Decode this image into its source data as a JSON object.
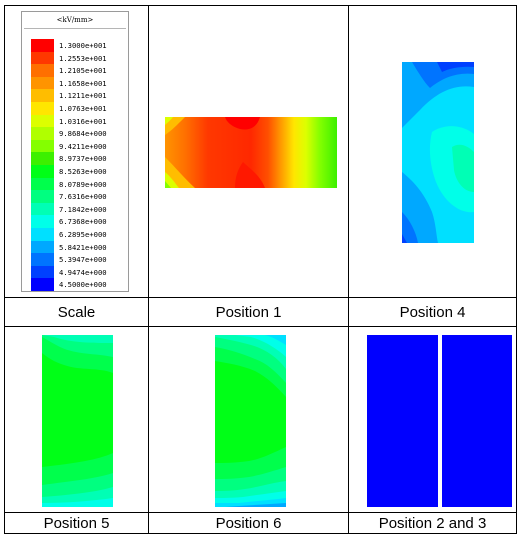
{
  "legend": {
    "unit": "<kV/mm>",
    "levels": [
      {
        "value": "1.3000e+001",
        "color": "#ff0000"
      },
      {
        "value": "1.2553e+001",
        "color": "#ff3800"
      },
      {
        "value": "1.2105e+001",
        "color": "#ff6f00"
      },
      {
        "value": "1.1658e+001",
        "color": "#ff9400"
      },
      {
        "value": "1.1211e+001",
        "color": "#ffbd00"
      },
      {
        "value": "1.0763e+001",
        "color": "#ffe600"
      },
      {
        "value": "1.0316e+001",
        "color": "#dcff00"
      },
      {
        "value": "9.8684e+000",
        "color": "#b0ff00"
      },
      {
        "value": "9.4211e+000",
        "color": "#84ff00"
      },
      {
        "value": "8.9737e+000",
        "color": "#3cf000"
      },
      {
        "value": "8.5263e+000",
        "color": "#00ff17"
      },
      {
        "value": "8.0789e+000",
        "color": "#00ff4c"
      },
      {
        "value": "7.6316e+000",
        "color": "#00ff80"
      },
      {
        "value": "7.1842e+000",
        "color": "#00ffb5"
      },
      {
        "value": "6.7368e+000",
        "color": "#00ffe9"
      },
      {
        "value": "6.2895e+000",
        "color": "#00e0ff"
      },
      {
        "value": "5.8421e+000",
        "color": "#00a8ff"
      },
      {
        "value": "5.3947e+000",
        "color": "#0074ff"
      },
      {
        "value": "4.9474e+000",
        "color": "#0040ff"
      },
      {
        "value": "4.5000e+000",
        "color": "#0000ff"
      }
    ]
  },
  "captions": {
    "scale": "Scale",
    "position1": "Position 1",
    "position4": "Position 4",
    "position5": "Position 5",
    "position6": "Position 6",
    "position23": "Position 2 and 3"
  }
}
